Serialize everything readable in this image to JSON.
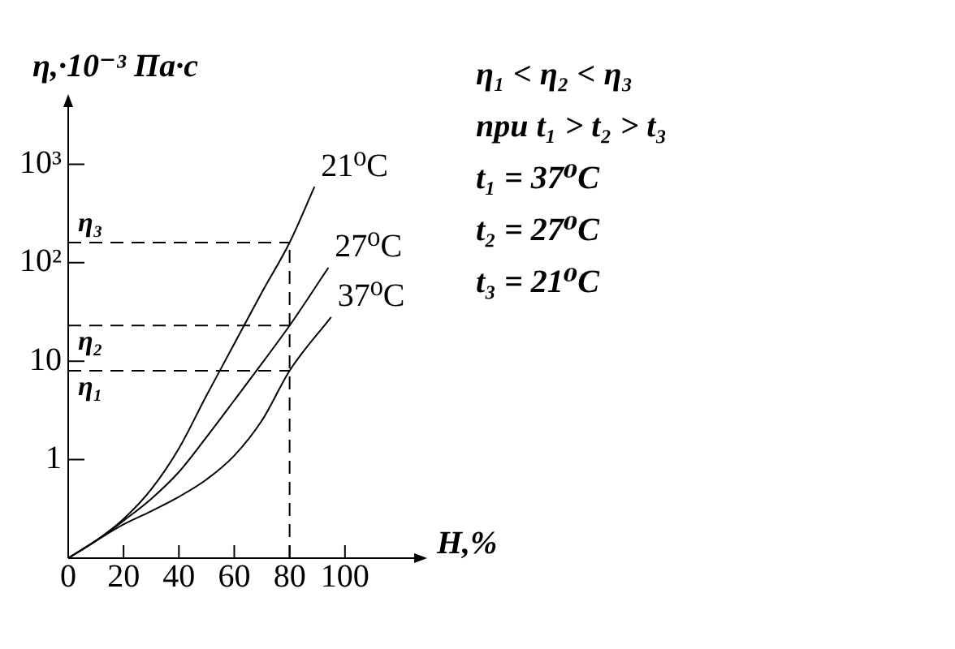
{
  "chart_data": {
    "type": "line",
    "xlabel": "H,%",
    "ylabel": "η,·10⁻³ Па·с",
    "log": "y",
    "grid": false,
    "legend": false,
    "marker": "none",
    "line_style": "solid",
    "xlim": [
      0,
      125
    ],
    "xticks": [
      0,
      20,
      40,
      60,
      80,
      100
    ],
    "ylim": [
      0.1,
      3800
    ],
    "yticks": [
      1,
      10,
      {
        "value": 100,
        "label": "10²"
      },
      {
        "value": 1000,
        "label": "10³"
      }
    ],
    "x": [
      0,
      10,
      20,
      30,
      40,
      50,
      60,
      70,
      80,
      89
    ],
    "series": [
      {
        "name": "21⁰C",
        "color": "#000000",
        "values": [
          0.1,
          0.15,
          0.25,
          0.5,
          1.3,
          4.5,
          15,
          50,
          160,
          590
        ]
      },
      {
        "name": "27⁰C",
        "color": "#000000",
        "x": [
          0,
          10,
          20,
          30,
          40,
          50,
          60,
          70,
          80,
          94
        ],
        "values": [
          0.1,
          0.15,
          0.24,
          0.4,
          0.75,
          1.7,
          4,
          9.5,
          23,
          89
        ]
      },
      {
        "name": "37⁰C",
        "color": "#000000",
        "x": [
          0,
          10,
          20,
          30,
          40,
          50,
          60,
          70,
          80,
          95
        ],
        "values": [
          0.1,
          0.15,
          0.22,
          0.3,
          0.42,
          0.63,
          1.1,
          2.5,
          8,
          28
        ]
      }
    ],
    "ref_lines": [
      {
        "axis": "y",
        "value": 160,
        "label": "η₃",
        "line_style": "dashed"
      },
      {
        "axis": "y",
        "value": 23,
        "label": "η₂",
        "line_style": "dashed"
      },
      {
        "axis": "y",
        "value": 8,
        "label": "η₁",
        "line_style": "dashed"
      },
      {
        "axis": "x",
        "value": 80,
        "line_style": "dashed"
      }
    ],
    "annotations": [
      "η₁ < η₂ < η₃",
      "при t₁ > t₂ > t₃",
      "t₁ = 37⁰C",
      "t₂ = 27⁰C",
      "t₃ = 21⁰C"
    ]
  }
}
